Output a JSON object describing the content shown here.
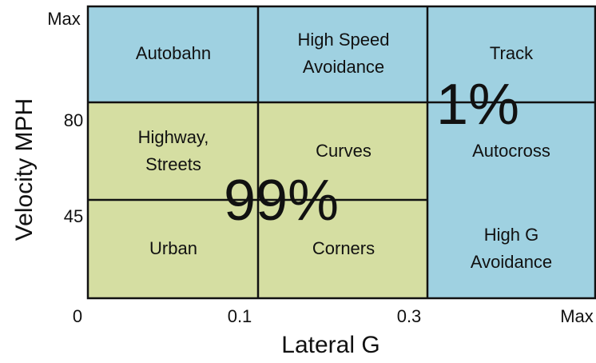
{
  "cells": [
    {
      "lines": [
        "Autobahn"
      ]
    },
    {
      "lines": [
        "High Speed",
        "Avoidance"
      ]
    },
    {
      "lines": [
        "Track"
      ]
    },
    {
      "lines": [
        "Highway,",
        "Streets"
      ]
    },
    {
      "lines": [
        "Curves"
      ]
    },
    {
      "lines": [
        "Autocross"
      ]
    },
    {
      "lines": [
        "Urban"
      ]
    },
    {
      "lines": [
        "Corners"
      ]
    },
    {
      "lines": [
        "High G",
        "Avoidance"
      ]
    }
  ],
  "shares": {
    "low": "99%",
    "high": "1%"
  },
  "y_axis": {
    "title": "Velocity MPH",
    "labels": [
      "Max",
      "80",
      "45"
    ]
  },
  "x_axis": {
    "title": "Lateral G",
    "labels": [
      "0",
      "0.1",
      "0.3",
      "Max"
    ]
  }
}
